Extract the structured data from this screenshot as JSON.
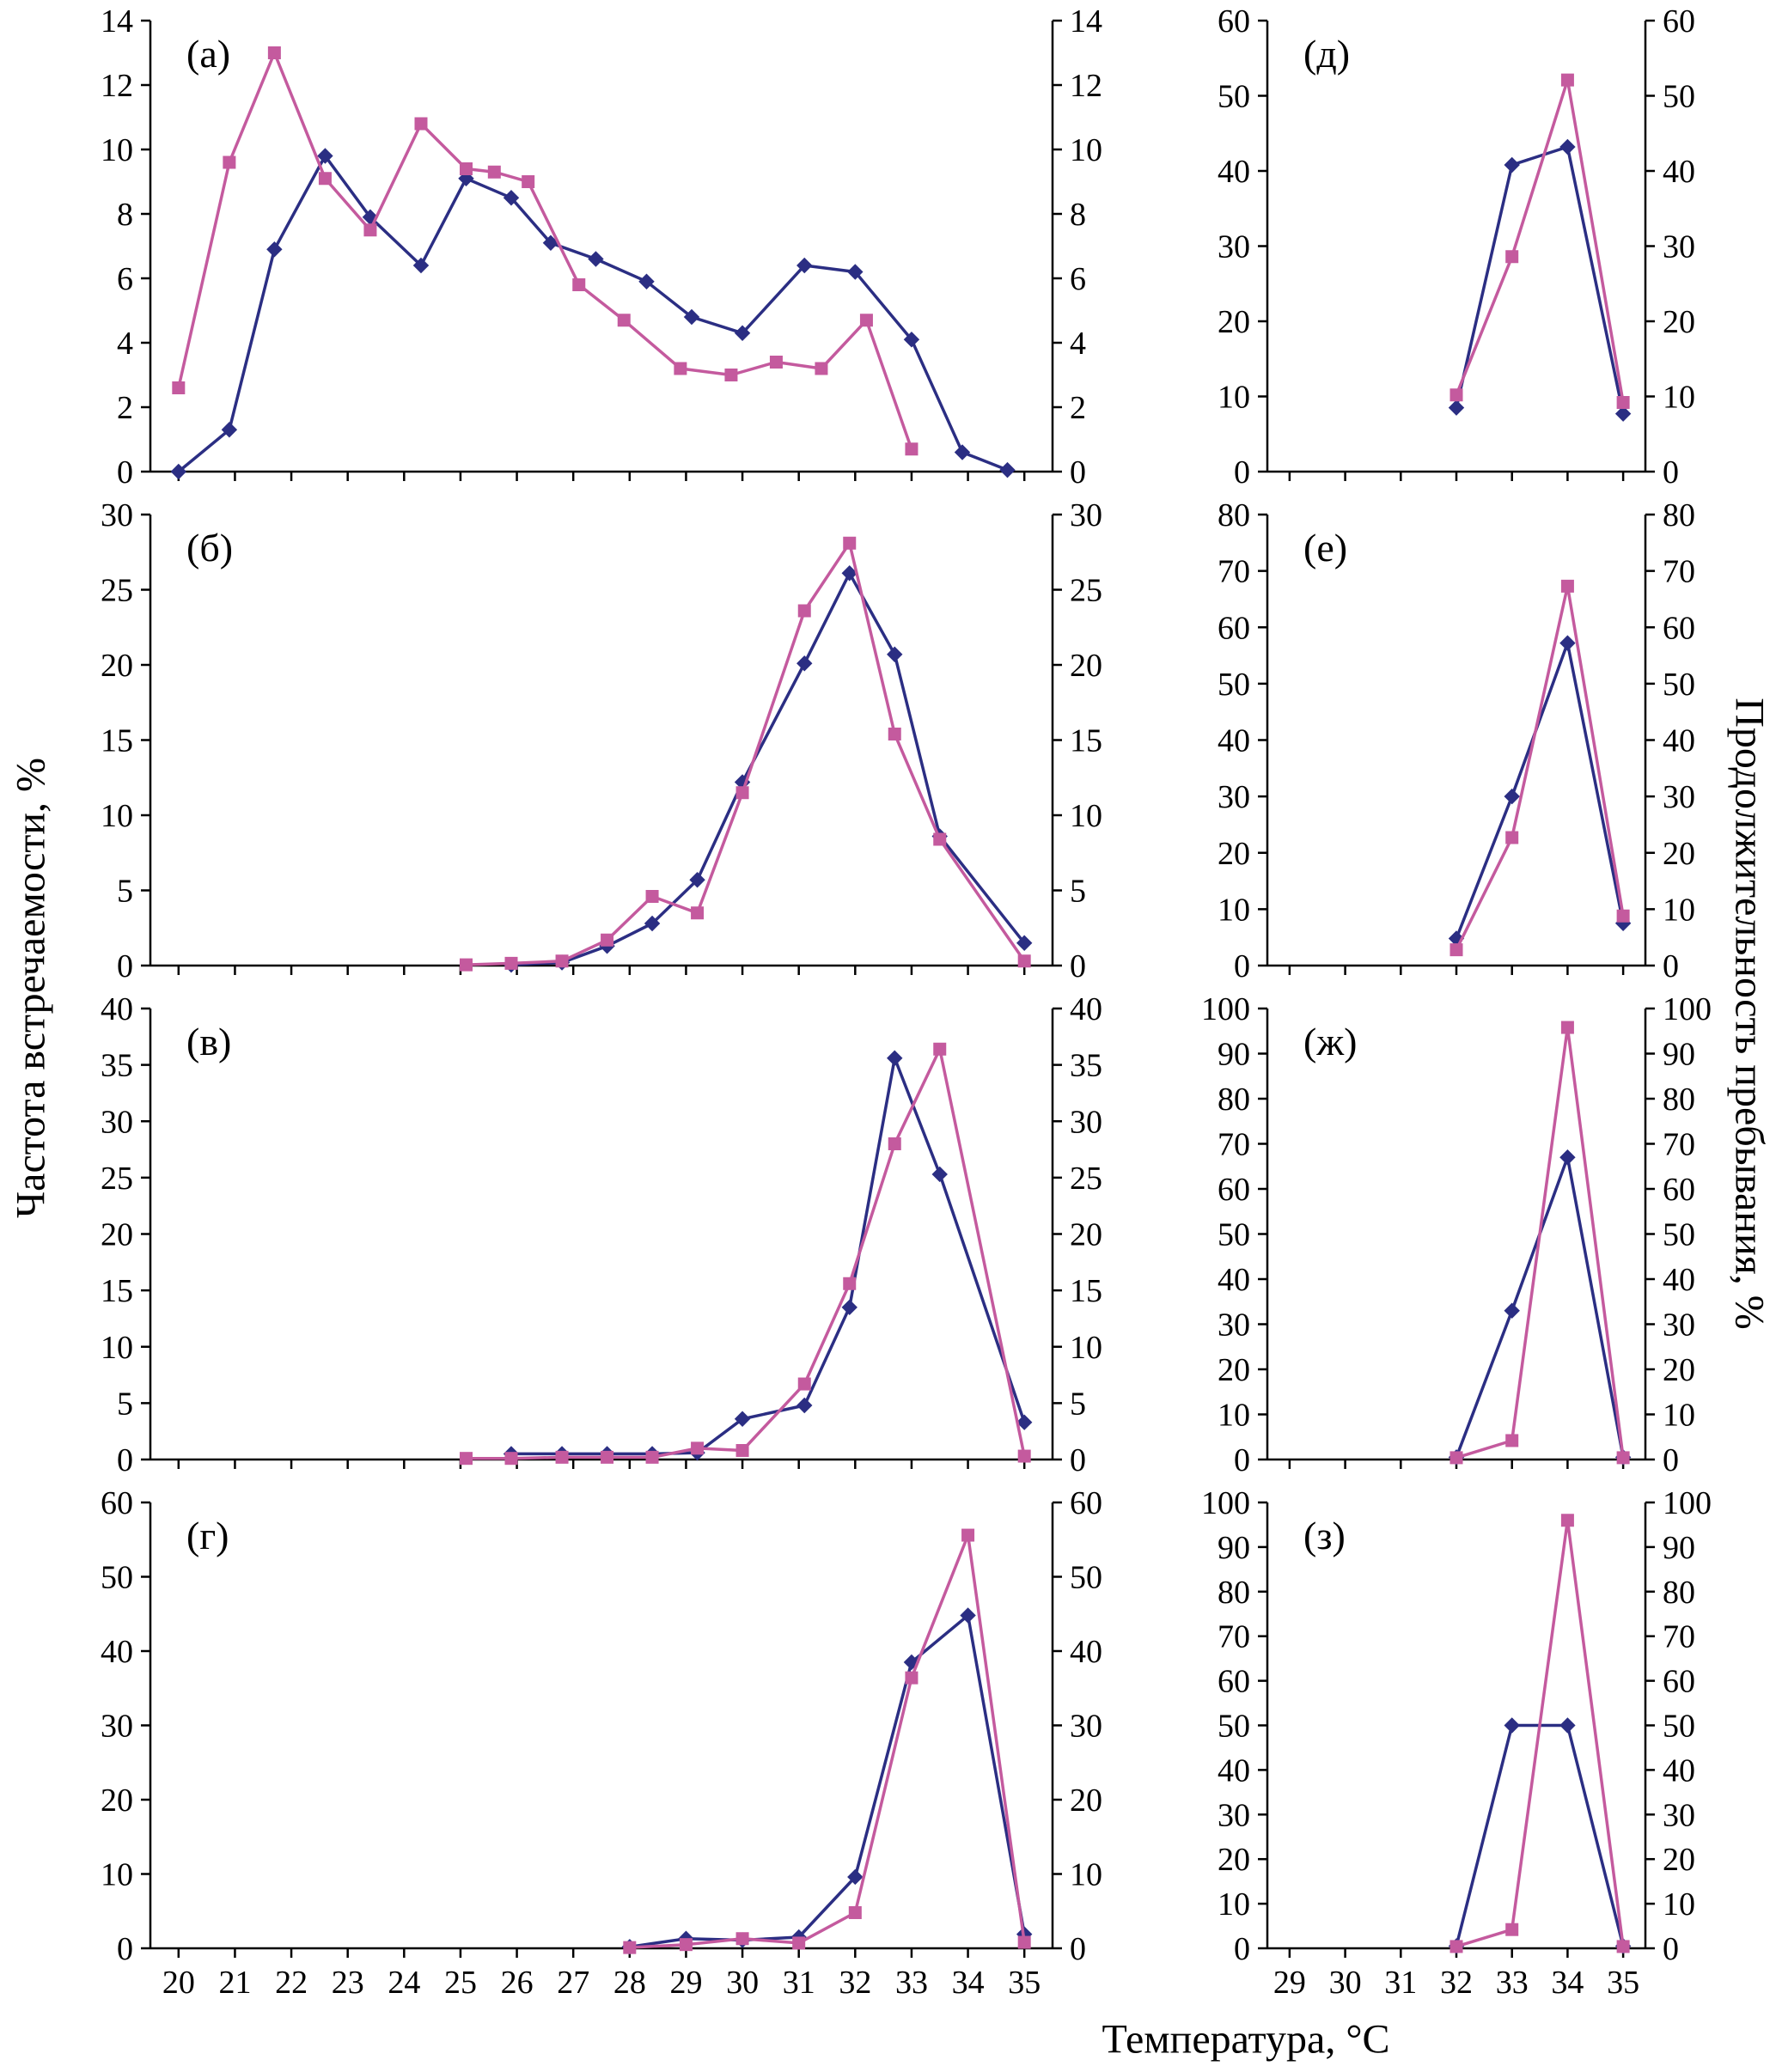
{
  "figure": {
    "x_axis_label": "Температура, °C",
    "y_axis_label_left": "Частота встречаемости, %",
    "y_axis_label_right": "Продолжительность пребывания, %",
    "colors": {
      "series1": "#2b2e83",
      "series2": "#c45a9e"
    }
  },
  "chart_data": {
    "type": "line",
    "title": "",
    "x_axis_label": "Температура, °C",
    "y_axis_label_left": "Частота встречаемости, %",
    "y_axis_label_right": "Продолжительность пребывания, %",
    "legend": "none",
    "panels": [
      {
        "id": "a",
        "letter": "(а)",
        "column": "left",
        "ylim": [
          0,
          14
        ],
        "yticks": [
          0,
          2,
          4,
          6,
          8,
          10,
          12,
          14
        ],
        "xlim": [
          20,
          35
        ],
        "xticks": [
          20,
          21,
          22,
          23,
          24,
          25,
          26,
          27,
          28,
          29,
          30,
          31,
          32,
          33,
          34,
          35
        ],
        "show_x_tick_labels": false,
        "series": [
          {
            "marker": "diamond",
            "color": "#2b2e83",
            "points": [
              [
                20,
                0
              ],
              [
                20.9,
                1.3
              ],
              [
                21.7,
                6.9
              ],
              [
                22.6,
                9.8
              ],
              [
                23.4,
                7.9
              ],
              [
                24.3,
                6.4
              ],
              [
                25.1,
                9.1
              ],
              [
                25.9,
                8.5
              ],
              [
                26.6,
                7.1
              ],
              [
                27.4,
                6.6
              ],
              [
                28.3,
                5.9
              ],
              [
                29.1,
                4.8
              ],
              [
                30,
                4.3
              ],
              [
                31.1,
                6.4
              ],
              [
                32,
                6.2
              ],
              [
                33,
                4.1
              ],
              [
                33.9,
                0.6
              ],
              [
                34.7,
                0.05
              ]
            ]
          },
          {
            "marker": "square",
            "color": "#c45a9e",
            "points": [
              [
                20,
                2.6
              ],
              [
                20.9,
                9.6
              ],
              [
                21.7,
                13
              ],
              [
                22.6,
                9.1
              ],
              [
                23.4,
                7.5
              ],
              [
                24.3,
                10.8
              ],
              [
                25.1,
                9.4
              ],
              [
                25.6,
                9.3
              ],
              [
                26.2,
                9
              ],
              [
                27.1,
                5.8
              ],
              [
                27.9,
                4.7
              ],
              [
                28.9,
                3.2
              ],
              [
                29.8,
                3
              ],
              [
                30.6,
                3.4
              ],
              [
                31.4,
                3.2
              ],
              [
                32.2,
                4.7
              ],
              [
                33,
                0.7
              ]
            ]
          }
        ]
      },
      {
        "id": "d",
        "letter": "(д)",
        "column": "right",
        "ylim": [
          0,
          60
        ],
        "yticks": [
          0,
          10,
          20,
          30,
          40,
          50,
          60
        ],
        "xlim": [
          29,
          35
        ],
        "xticks": [
          29,
          30,
          31,
          32,
          33,
          34,
          35
        ],
        "show_x_tick_labels": false,
        "series": [
          {
            "marker": "diamond",
            "color": "#2b2e83",
            "points": [
              [
                32,
                8.5
              ],
              [
                33,
                40.8
              ],
              [
                34,
                43.2
              ],
              [
                35,
                7.7
              ]
            ]
          },
          {
            "marker": "square",
            "color": "#c45a9e",
            "points": [
              [
                32,
                10.2
              ],
              [
                33,
                28.6
              ],
              [
                34,
                52.1
              ],
              [
                35,
                9.2
              ]
            ]
          }
        ]
      },
      {
        "id": "b",
        "letter": "(б)",
        "column": "left",
        "ylim": [
          0,
          30
        ],
        "yticks": [
          0,
          5,
          10,
          15,
          20,
          25,
          30
        ],
        "xlim": [
          20,
          35
        ],
        "xticks": [
          20,
          21,
          22,
          23,
          24,
          25,
          26,
          27,
          28,
          29,
          30,
          31,
          32,
          33,
          34,
          35
        ],
        "show_x_tick_labels": false,
        "series": [
          {
            "marker": "diamond",
            "color": "#2b2e83",
            "points": [
              [
                25.9,
                0.05
              ],
              [
                26.8,
                0.2
              ],
              [
                27.6,
                1.3
              ],
              [
                28.4,
                2.8
              ],
              [
                29.2,
                5.7
              ],
              [
                30,
                12.2
              ],
              [
                31.1,
                20.1
              ],
              [
                31.9,
                26.1
              ],
              [
                32.7,
                20.7
              ],
              [
                33.5,
                8.6
              ],
              [
                35,
                1.5
              ]
            ]
          },
          {
            "marker": "square",
            "color": "#c45a9e",
            "points": [
              [
                25.1,
                0.05
              ],
              [
                25.9,
                0.15
              ],
              [
                26.8,
                0.3
              ],
              [
                27.6,
                1.7
              ],
              [
                28.4,
                4.6
              ],
              [
                29.2,
                3.5
              ],
              [
                30,
                11.5
              ],
              [
                31.1,
                23.6
              ],
              [
                31.9,
                28.1
              ],
              [
                32.7,
                15.4
              ],
              [
                33.5,
                8.4
              ],
              [
                35,
                0.3
              ]
            ]
          }
        ]
      },
      {
        "id": "e",
        "letter": "(е)",
        "column": "right",
        "ylim": [
          0,
          80
        ],
        "yticks": [
          0,
          10,
          20,
          30,
          40,
          50,
          60,
          70,
          80
        ],
        "xlim": [
          29,
          35
        ],
        "xticks": [
          29,
          30,
          31,
          32,
          33,
          34,
          35
        ],
        "show_x_tick_labels": false,
        "series": [
          {
            "marker": "diamond",
            "color": "#2b2e83",
            "points": [
              [
                32,
                4.8
              ],
              [
                33,
                30
              ],
              [
                34,
                57.2
              ],
              [
                35,
                7.5
              ]
            ]
          },
          {
            "marker": "square",
            "color": "#c45a9e",
            "points": [
              [
                32,
                2.8
              ],
              [
                33,
                22.7
              ],
              [
                34,
                67.3
              ],
              [
                35,
                8.8
              ]
            ]
          }
        ]
      },
      {
        "id": "v",
        "letter": "(в)",
        "column": "left",
        "ylim": [
          0,
          40
        ],
        "yticks": [
          0,
          5,
          10,
          15,
          20,
          25,
          30,
          35,
          40
        ],
        "xlim": [
          20,
          35
        ],
        "xticks": [
          20,
          21,
          22,
          23,
          24,
          25,
          26,
          27,
          28,
          29,
          30,
          31,
          32,
          33,
          34,
          35
        ],
        "show_x_tick_labels": false,
        "series": [
          {
            "marker": "diamond",
            "color": "#2b2e83",
            "points": [
              [
                25.9,
                0.5
              ],
              [
                26.8,
                0.5
              ],
              [
                27.6,
                0.5
              ],
              [
                28.4,
                0.5
              ],
              [
                29.2,
                0.6
              ],
              [
                30,
                3.6
              ],
              [
                31.1,
                4.8
              ],
              [
                31.9,
                13.5
              ],
              [
                32.7,
                35.6
              ],
              [
                33.5,
                25.3
              ],
              [
                35,
                3.3
              ]
            ]
          },
          {
            "marker": "square",
            "color": "#c45a9e",
            "points": [
              [
                25.1,
                0.1
              ],
              [
                25.9,
                0.1
              ],
              [
                26.8,
                0.2
              ],
              [
                27.6,
                0.2
              ],
              [
                28.4,
                0.2
              ],
              [
                29.2,
                1
              ],
              [
                30,
                0.8
              ],
              [
                31.1,
                6.7
              ],
              [
                31.9,
                15.6
              ],
              [
                32.7,
                28
              ],
              [
                33.5,
                36.4
              ],
              [
                35,
                0.3
              ]
            ]
          }
        ]
      },
      {
        "id": "zh",
        "letter": "(ж)",
        "column": "right",
        "ylim": [
          0,
          100
        ],
        "yticks": [
          0,
          10,
          20,
          30,
          40,
          50,
          60,
          70,
          80,
          90,
          100
        ],
        "xlim": [
          29,
          35
        ],
        "xticks": [
          29,
          30,
          31,
          32,
          33,
          34,
          35
        ],
        "show_x_tick_labels": false,
        "series": [
          {
            "marker": "diamond",
            "color": "#2b2e83",
            "points": [
              [
                32,
                0.5
              ],
              [
                33,
                33
              ],
              [
                34,
                67
              ],
              [
                35,
                0.5
              ]
            ]
          },
          {
            "marker": "square",
            "color": "#c45a9e",
            "points": [
              [
                32,
                0.4
              ],
              [
                33,
                4.2
              ],
              [
                34,
                95.8
              ],
              [
                35,
                0.4
              ]
            ]
          }
        ]
      },
      {
        "id": "g",
        "letter": "(г)",
        "column": "left",
        "ylim": [
          0,
          60
        ],
        "yticks": [
          0,
          10,
          20,
          30,
          40,
          50,
          60
        ],
        "xlim": [
          20,
          35
        ],
        "xticks": [
          20,
          21,
          22,
          23,
          24,
          25,
          26,
          27,
          28,
          29,
          30,
          31,
          32,
          33,
          34,
          35
        ],
        "show_x_tick_labels": true,
        "series": [
          {
            "marker": "diamond",
            "color": "#2b2e83",
            "points": [
              [
                28,
                0.2
              ],
              [
                29,
                1.3
              ],
              [
                30,
                1.1
              ],
              [
                31,
                1.5
              ],
              [
                32,
                9.6
              ],
              [
                33,
                38.5
              ],
              [
                34,
                44.8
              ],
              [
                35,
                1.9
              ]
            ]
          },
          {
            "marker": "square",
            "color": "#c45a9e",
            "points": [
              [
                28,
                0.1
              ],
              [
                29,
                0.5
              ],
              [
                30,
                1.3
              ],
              [
                31,
                0.7
              ],
              [
                32,
                4.8
              ],
              [
                33,
                36.4
              ],
              [
                34,
                55.6
              ],
              [
                35,
                0.8
              ]
            ]
          }
        ]
      },
      {
        "id": "z",
        "letter": "(з)",
        "column": "right",
        "ylim": [
          0,
          100
        ],
        "yticks": [
          0,
          10,
          20,
          30,
          40,
          50,
          60,
          70,
          80,
          90,
          100
        ],
        "xlim": [
          29,
          35
        ],
        "xticks": [
          29,
          30,
          31,
          32,
          33,
          34,
          35
        ],
        "show_x_tick_labels": true,
        "series": [
          {
            "marker": "diamond",
            "color": "#2b2e83",
            "points": [
              [
                32,
                0.5
              ],
              [
                33,
                50
              ],
              [
                34,
                50
              ],
              [
                35,
                0.5
              ]
            ]
          },
          {
            "marker": "square",
            "color": "#c45a9e",
            "points": [
              [
                32,
                0.4
              ],
              [
                33,
                4.2
              ],
              [
                34,
                96
              ],
              [
                35,
                0.4
              ]
            ]
          }
        ]
      }
    ]
  }
}
